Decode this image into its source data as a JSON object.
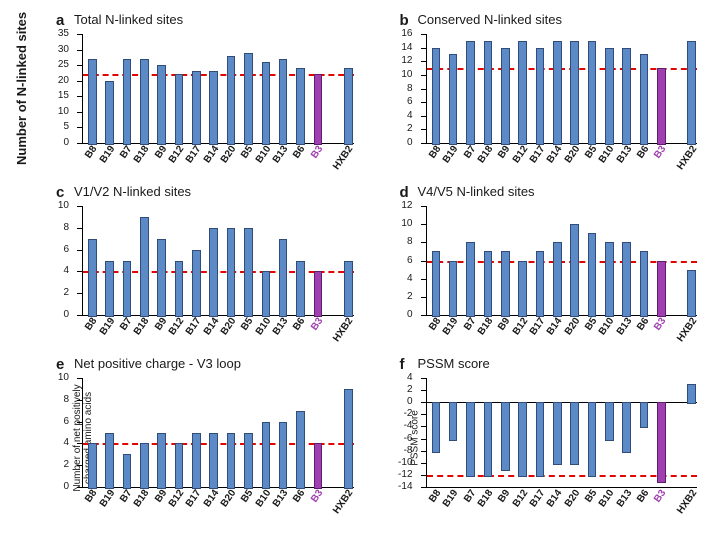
{
  "globalYLabel": "Number of N-linked sites",
  "categories": [
    "B8",
    "B19",
    "B7",
    "B18",
    "B9",
    "B12",
    "B17",
    "B14",
    "B20",
    "B5",
    "B10",
    "B13",
    "B6",
    "B3",
    "",
    "HXB2"
  ],
  "specialCategory": "B3",
  "barColor": "#5b8ac6",
  "barBorder": "#2f4d78",
  "specialColor": "#a03fb0",
  "specialBorder": "#5d1e6b",
  "axisColor": "#000000",
  "refColor": "#e10600",
  "xlabelFontSize": 10,
  "ylabelFontSize": 10,
  "titleFontSize": 13,
  "panels": [
    {
      "key": "a",
      "title": "Total N-linked sites",
      "ymin": 0,
      "ymax": 35,
      "ytick": 5,
      "ref": 22,
      "values": [
        27,
        20,
        27,
        27,
        25,
        22,
        23,
        23,
        28,
        29,
        26,
        27,
        24,
        22,
        null,
        24
      ]
    },
    {
      "key": "b",
      "title": "Conserved N-linked sites",
      "ymin": 0,
      "ymax": 16,
      "ytick": 2,
      "ref": 11,
      "values": [
        14,
        13,
        15,
        15,
        14,
        15,
        14,
        15,
        15,
        15,
        14,
        14,
        13,
        11,
        null,
        15
      ]
    },
    {
      "key": "c",
      "title": "V1/V2 N-linked sites",
      "ymin": 0,
      "ymax": 10,
      "ytick": 2,
      "ref": 4,
      "values": [
        7,
        5,
        5,
        9,
        7,
        5,
        6,
        8,
        8,
        8,
        4,
        7,
        5,
        4,
        null,
        5
      ]
    },
    {
      "key": "d",
      "title": "V4/V5 N-linked sites",
      "ymin": 0,
      "ymax": 12,
      "ytick": 2,
      "ref": 6,
      "values": [
        7,
        6,
        8,
        7,
        7,
        6,
        7,
        8,
        10,
        9,
        8,
        8,
        7,
        6,
        null,
        5
      ]
    },
    {
      "key": "e",
      "title": "Net positive charge - V3 loop",
      "ylabel": "Number of net positively\ncharged amino acids",
      "ymin": 0,
      "ymax": 10,
      "ytick": 2,
      "ref": 4,
      "values": [
        4,
        5,
        3,
        4,
        5,
        4,
        5,
        5,
        5,
        5,
        6,
        6,
        7,
        4,
        null,
        9
      ]
    },
    {
      "key": "f",
      "title": "PSSM score",
      "ylabel": "PSSM score",
      "ymin": -14,
      "ymax": 4,
      "ytick": 2,
      "ref": -12,
      "baseline": 0,
      "values": [
        -8,
        -6,
        -12,
        -12,
        -11,
        -12,
        -12,
        -10,
        -10,
        -12,
        -6,
        -8,
        -4,
        -13,
        null,
        3
      ]
    }
  ]
}
